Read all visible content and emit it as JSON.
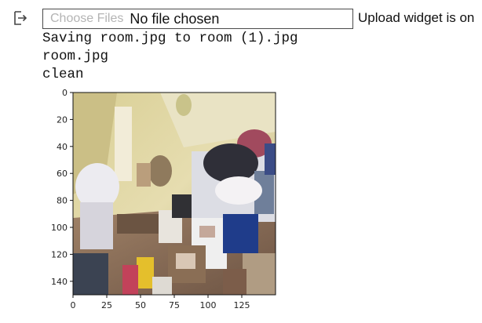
{
  "output": {
    "icon": "output-arrow-icon"
  },
  "upload": {
    "choose_label": "Choose Files",
    "no_file_label": "No file chosen",
    "status": "Upload widget is on"
  },
  "console_lines": [
    "Saving room.jpg to room (1).jpg",
    "room.jpg",
    "clean"
  ],
  "chart_data": {
    "type": "image",
    "title": "",
    "xlabel": "",
    "ylabel": "",
    "xlim": [
      0,
      150
    ],
    "ylim": [
      150,
      0
    ],
    "x_ticks": [
      0,
      25,
      50,
      75,
      100,
      125
    ],
    "y_ticks": [
      0,
      20,
      40,
      60,
      80,
      100,
      120,
      140
    ],
    "image_content": "cluttered bedroom with clothes and boxes on bed and floor"
  }
}
